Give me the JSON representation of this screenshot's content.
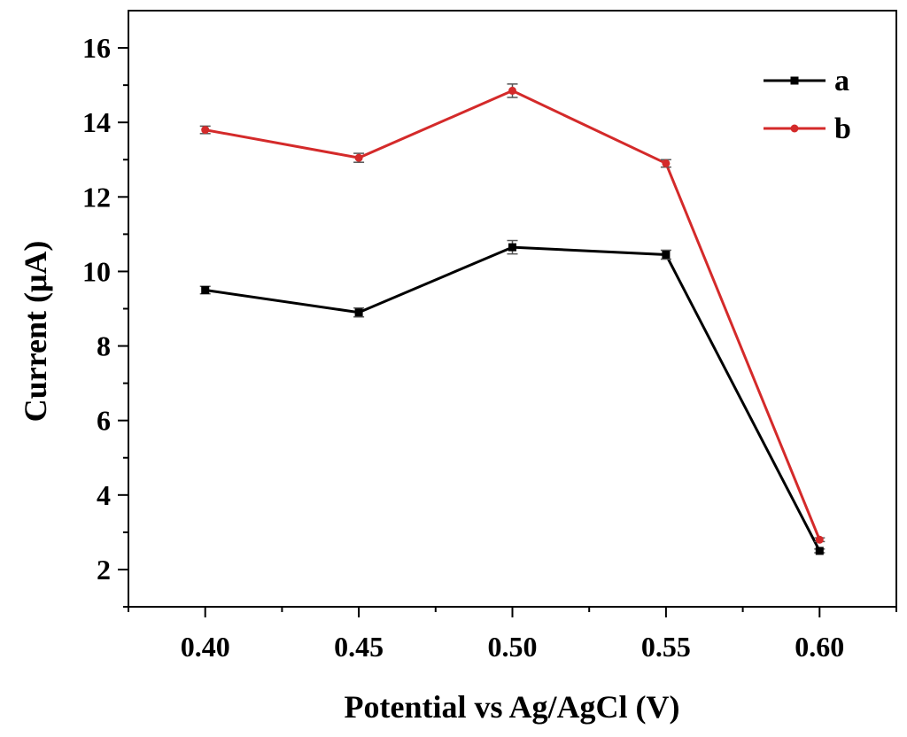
{
  "chart_data": {
    "type": "line",
    "title": "",
    "xlabel": "Potential vs Ag/AgCl (V)",
    "ylabel": "Current (μA)",
    "xlim": [
      0.375,
      0.625
    ],
    "ylim": [
      1.0,
      17.0
    ],
    "x": [
      0.4,
      0.45,
      0.5,
      0.55,
      0.6
    ],
    "x_tick_labels": [
      "0.40",
      "0.45",
      "0.50",
      "0.55",
      "0.60"
    ],
    "y_ticks": [
      2,
      4,
      6,
      8,
      10,
      12,
      14,
      16
    ],
    "y_tick_labels": [
      "2",
      "4",
      "6",
      "8",
      "10",
      "12",
      "14",
      "16"
    ],
    "legend_position": "top-right",
    "series": [
      {
        "name": "a",
        "color": "#000000",
        "marker": "square",
        "values": [
          9.5,
          8.9,
          10.65,
          10.45,
          2.5
        ],
        "errors": [
          0.1,
          0.12,
          0.18,
          0.12,
          0.05
        ]
      },
      {
        "name": "b",
        "color": "#d42a2a",
        "marker": "circle",
        "values": [
          13.8,
          13.05,
          14.85,
          12.9,
          2.8
        ],
        "errors": [
          0.1,
          0.12,
          0.18,
          0.1,
          0.05
        ]
      }
    ]
  }
}
